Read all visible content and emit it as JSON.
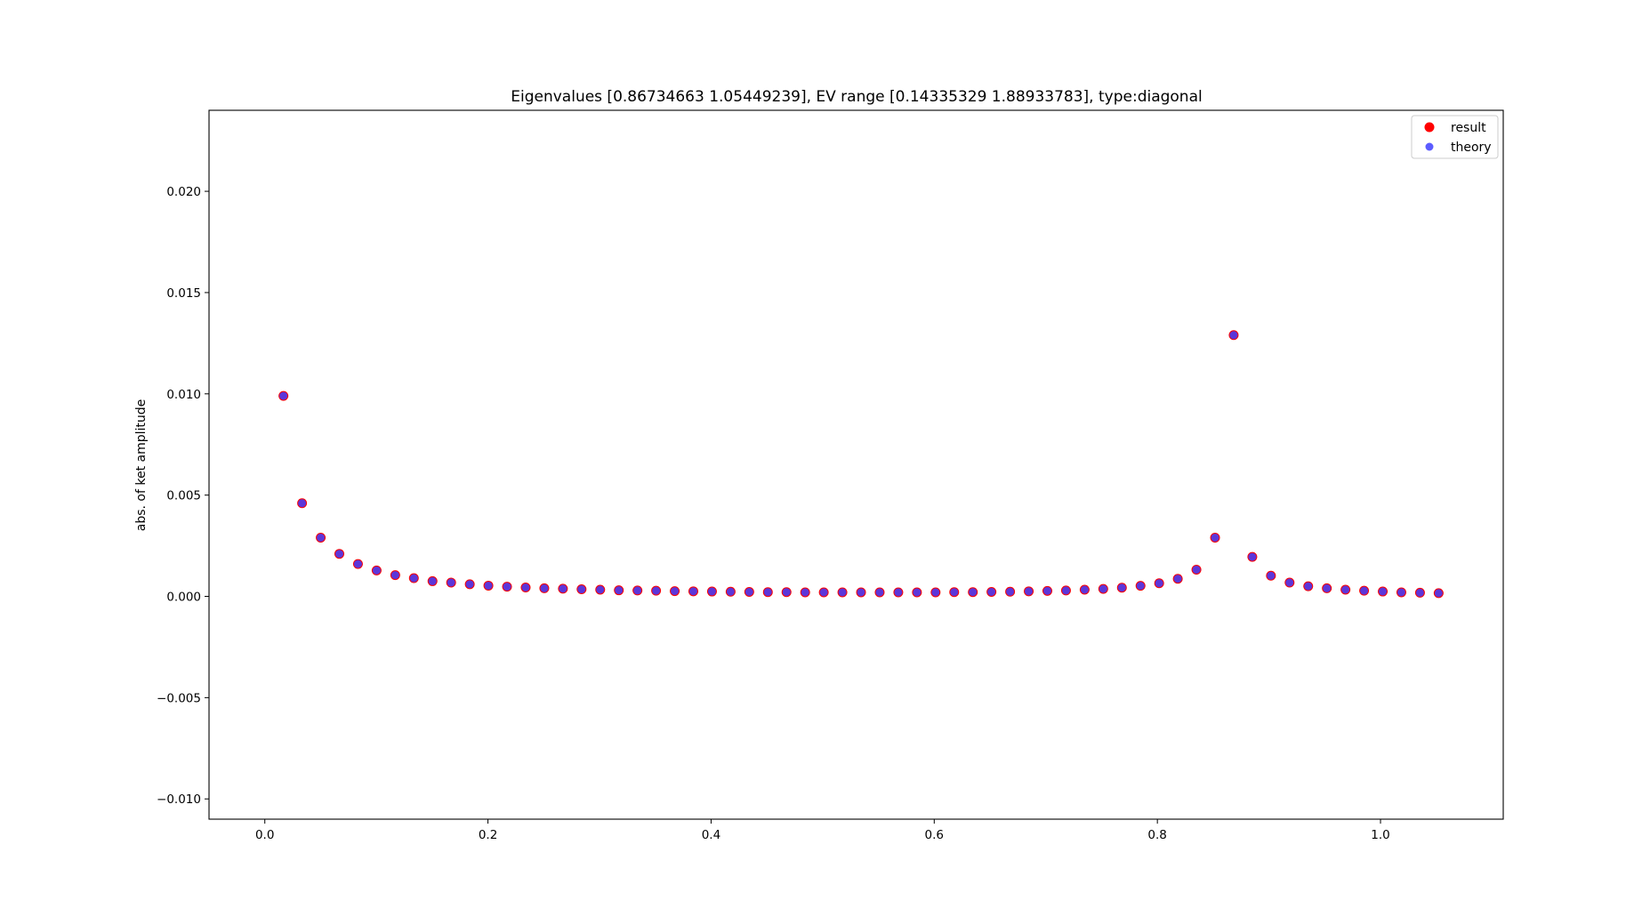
{
  "chart_data": {
    "type": "scatter",
    "title": "Eigenvalues [0.86734663 1.05449239], EV range [0.14335329 1.88933783], type:diagonal",
    "xlabel": "",
    "ylabel": "abs. of ket amplitude",
    "xlim": [
      -0.05,
      1.11
    ],
    "ylim": [
      -0.011,
      0.024
    ],
    "x_ticks": [
      0.0,
      0.2,
      0.4,
      0.6,
      0.8,
      1.0
    ],
    "x_tick_labels": [
      "0.0",
      "0.2",
      "0.4",
      "0.6",
      "0.8",
      "1.0"
    ],
    "y_ticks": [
      -0.01,
      -0.005,
      0.0,
      0.005,
      0.01,
      0.015,
      0.02
    ],
    "y_tick_labels": [
      "−0.010",
      "−0.005",
      "0.000",
      "0.005",
      "0.010",
      "0.015",
      "0.020"
    ],
    "grid": false,
    "legend_position": "top-right",
    "colors": {
      "result": "#ff0000",
      "theory": "#4040ff"
    },
    "x": [
      0.0167,
      0.0334,
      0.0501,
      0.0668,
      0.0835,
      0.1002,
      0.1169,
      0.1336,
      0.1503,
      0.167,
      0.1837,
      0.2004,
      0.2171,
      0.2338,
      0.2505,
      0.2672,
      0.2839,
      0.3006,
      0.3173,
      0.334,
      0.3507,
      0.3674,
      0.3841,
      0.4008,
      0.4175,
      0.4342,
      0.4509,
      0.4676,
      0.4843,
      0.501,
      0.5177,
      0.5344,
      0.5511,
      0.5678,
      0.5845,
      0.6012,
      0.6179,
      0.6346,
      0.6513,
      0.668,
      0.6847,
      0.7014,
      0.7181,
      0.7348,
      0.7515,
      0.7682,
      0.7849,
      0.8016,
      0.8183,
      0.835,
      0.8517,
      0.8684,
      0.8851,
      0.9018,
      0.9185,
      0.9352,
      0.9519,
      0.9686,
      0.9853,
      1.002,
      1.0187,
      1.0354,
      1.0521
    ],
    "series": [
      {
        "name": "result",
        "values": [
          0.0099,
          0.0046,
          0.0029,
          0.0021,
          0.0016,
          0.00128,
          0.00105,
          0.0009,
          0.00075,
          0.00068,
          0.0006,
          0.00053,
          0.00048,
          0.00044,
          0.0004,
          0.00038,
          0.00035,
          0.00033,
          0.0003,
          0.00029,
          0.00028,
          0.00026,
          0.00025,
          0.00024,
          0.00023,
          0.00022,
          0.00021,
          0.00021,
          0.0002,
          0.0002,
          0.0002,
          0.0002,
          0.0002,
          0.0002,
          0.0002,
          0.0002,
          0.00021,
          0.00021,
          0.00022,
          0.00023,
          0.00025,
          0.00027,
          0.00029,
          0.00033,
          0.00037,
          0.00043,
          0.00052,
          0.00065,
          0.00087,
          0.00132,
          0.0029,
          0.0129,
          0.00195,
          0.00102,
          0.00068,
          0.0005,
          0.0004,
          0.00033,
          0.00028,
          0.00024,
          0.0002,
          0.00018,
          0.00016
        ]
      },
      {
        "name": "theory",
        "values": [
          0.0099,
          0.0046,
          0.0029,
          0.0021,
          0.0016,
          0.00128,
          0.00105,
          0.0009,
          0.00075,
          0.00068,
          0.0006,
          0.00053,
          0.00048,
          0.00044,
          0.0004,
          0.00038,
          0.00035,
          0.00033,
          0.0003,
          0.00029,
          0.00028,
          0.00026,
          0.00025,
          0.00024,
          0.00023,
          0.00022,
          0.00021,
          0.00021,
          0.0002,
          0.0002,
          0.0002,
          0.0002,
          0.0002,
          0.0002,
          0.0002,
          0.0002,
          0.00021,
          0.00021,
          0.00022,
          0.00023,
          0.00025,
          0.00027,
          0.00029,
          0.00033,
          0.00037,
          0.00043,
          0.00052,
          0.00065,
          0.00087,
          0.00132,
          0.0029,
          0.0129,
          0.00195,
          0.00102,
          0.00068,
          0.0005,
          0.0004,
          0.00033,
          0.00028,
          0.00024,
          0.0002,
          0.00018,
          0.00016
        ]
      }
    ]
  }
}
